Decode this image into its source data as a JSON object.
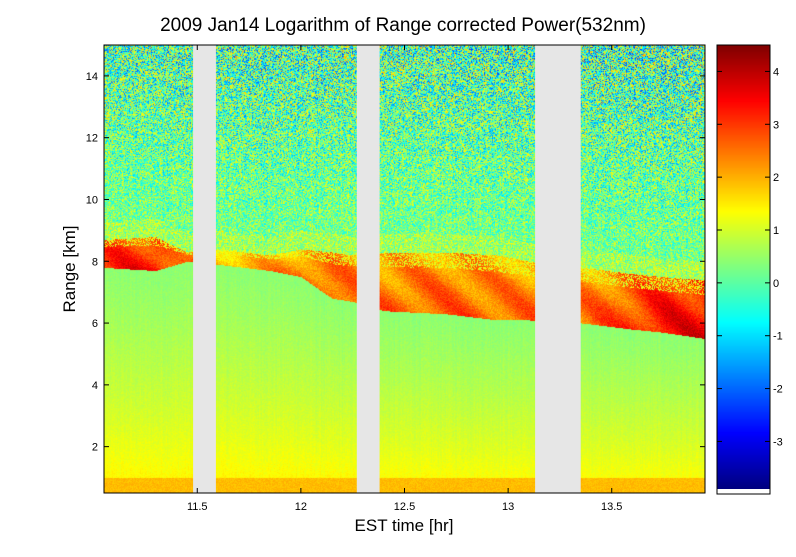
{
  "chart_data": {
    "type": "heatmap",
    "title": "2009 Jan14  Logarithm of Range corrected Power(532nm)",
    "xlabel": "EST time [hr]",
    "ylabel": "Range [km]",
    "xlim": [
      11.05,
      13.95
    ],
    "ylim": [
      0.5,
      15.0
    ],
    "x_ticks": [
      {
        "value": 11.5,
        "label": "11.5"
      },
      {
        "value": 12.0,
        "label": "12"
      },
      {
        "value": 12.5,
        "label": "12.5"
      },
      {
        "value": 13.0,
        "label": "13"
      },
      {
        "value": 13.5,
        "label": "13.5"
      }
    ],
    "y_ticks": [
      {
        "value": 2,
        "label": "2"
      },
      {
        "value": 4,
        "label": "4"
      },
      {
        "value": 6,
        "label": "6"
      },
      {
        "value": 8,
        "label": "8"
      },
      {
        "value": 10,
        "label": "10"
      },
      {
        "value": 12,
        "label": "12"
      },
      {
        "value": 14,
        "label": "14"
      }
    ],
    "colorbar": {
      "colormap": "jet",
      "min": -3.9,
      "max": 4.5,
      "ticks": [
        {
          "value": -3,
          "label": "-3"
        },
        {
          "value": -2,
          "label": "-2"
        },
        {
          "value": -1,
          "label": "-1"
        },
        {
          "value": 0,
          "label": "0"
        },
        {
          "value": 1,
          "label": "1"
        },
        {
          "value": 2,
          "label": "2"
        },
        {
          "value": 3,
          "label": "3"
        },
        {
          "value": 4,
          "label": "4"
        }
      ]
    },
    "data_gaps": [
      {
        "start": 11.48,
        "end": 11.59
      },
      {
        "start": 12.27,
        "end": 12.38
      },
      {
        "start": 13.13,
        "end": 13.35
      }
    ],
    "cloud_layer": [
      {
        "time": 11.05,
        "base": 7.8,
        "top": 8.7,
        "intensity": 3.2
      },
      {
        "time": 11.3,
        "base": 7.7,
        "top": 8.8,
        "intensity": 3.4
      },
      {
        "time": 11.45,
        "base": 8.0,
        "top": 8.3,
        "intensity": 2.4
      },
      {
        "time": 11.6,
        "base": 7.9,
        "top": 8.4,
        "intensity": 2.1
      },
      {
        "time": 11.85,
        "base": 7.7,
        "top": 8.2,
        "intensity": 2.2
      },
      {
        "time": 12.0,
        "base": 7.5,
        "top": 8.4,
        "intensity": 2.6
      },
      {
        "time": 12.15,
        "base": 6.8,
        "top": 8.3,
        "intensity": 2.8
      },
      {
        "time": 12.25,
        "base": 6.7,
        "top": 8.2,
        "intensity": 2.7
      },
      {
        "time": 12.4,
        "base": 6.4,
        "top": 8.3,
        "intensity": 2.6
      },
      {
        "time": 12.7,
        "base": 6.3,
        "top": 8.3,
        "intensity": 2.7
      },
      {
        "time": 12.95,
        "base": 6.1,
        "top": 8.2,
        "intensity": 2.6
      },
      {
        "time": 13.1,
        "base": 6.1,
        "top": 8.0,
        "intensity": 2.6
      },
      {
        "time": 13.36,
        "base": 6.0,
        "top": 7.8,
        "intensity": 2.6
      },
      {
        "time": 13.6,
        "base": 5.8,
        "top": 7.6,
        "intensity": 3.0
      },
      {
        "time": 13.75,
        "base": 5.7,
        "top": 7.5,
        "intensity": 3.5
      },
      {
        "time": 13.95,
        "base": 5.5,
        "top": 7.4,
        "intensity": 3.5
      }
    ],
    "boundary_layer": {
      "near_ground": 1.8,
      "mid": 0.9,
      "below_cloud": 0.4
    },
    "free_troposphere_mean": -0.1
  },
  "colors": {
    "background": "#ffffff",
    "gap_fill": "#e6e6e6",
    "axis": "#000000"
  }
}
